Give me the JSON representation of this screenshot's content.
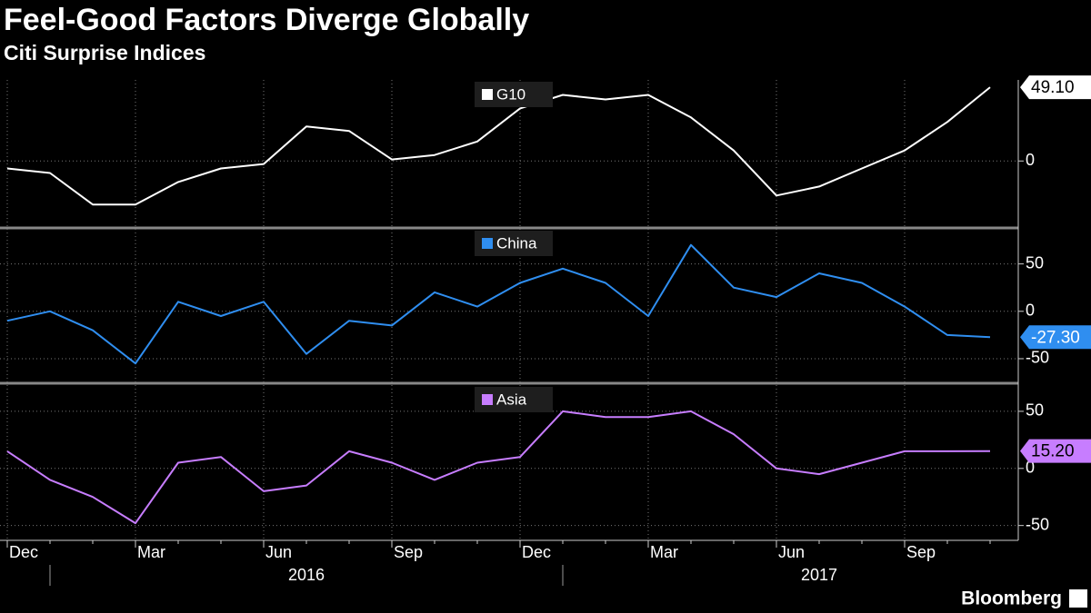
{
  "header": {
    "title": "Feel-Good Factors Diverge Globally",
    "subtitle": "Citi Surprise Indices"
  },
  "footer": "Bloomberg",
  "chart_data": [
    {
      "type": "line",
      "x": [
        "2015-12",
        "2016-01",
        "2016-02",
        "2016-03",
        "2016-04",
        "2016-05",
        "2016-06",
        "2016-07",
        "2016-08",
        "2016-09",
        "2016-10",
        "2016-11",
        "2016-12",
        "2017-01",
        "2017-02",
        "2017-03",
        "2017-04",
        "2017-05",
        "2017-06",
        "2017-07",
        "2017-08",
        "2017-09",
        "2017-10",
        "2017-11"
      ],
      "series": [
        {
          "name": "G10",
          "color": "#ffffff",
          "values": [
            -5,
            -8,
            -29,
            -29,
            -14,
            -5,
            -2,
            23,
            20,
            1,
            4,
            13,
            35,
            44,
            41,
            44,
            29,
            7,
            -23,
            -17,
            -5,
            7,
            26,
            49.1
          ],
          "value_labels": [
            null,
            null,
            null,
            null,
            null,
            null,
            null,
            null,
            null,
            null,
            null,
            null,
            null,
            null,
            null,
            null,
            null,
            null,
            null,
            null,
            null,
            null,
            null,
            "49.10"
          ]
        }
      ],
      "ylim": [
        -44,
        54
      ],
      "yticks": [
        0
      ],
      "grid": true
    },
    {
      "type": "line",
      "x": [
        "2015-12",
        "2016-01",
        "2016-02",
        "2016-03",
        "2016-04",
        "2016-05",
        "2016-06",
        "2016-07",
        "2016-08",
        "2016-09",
        "2016-10",
        "2016-11",
        "2016-12",
        "2017-01",
        "2017-02",
        "2017-03",
        "2017-04",
        "2017-05",
        "2017-06",
        "2017-07",
        "2017-08",
        "2017-09",
        "2017-10",
        "2017-11"
      ],
      "series": [
        {
          "name": "China",
          "color": "#2f8ef0",
          "values": [
            -10,
            0,
            -20,
            -55,
            10,
            -5,
            10,
            -45,
            -10,
            -15,
            20,
            5,
            30,
            45,
            30,
            -5,
            70,
            25,
            15,
            40,
            30,
            5,
            -25,
            -27.3
          ],
          "value_labels": [
            null,
            null,
            null,
            null,
            null,
            null,
            null,
            null,
            null,
            null,
            null,
            null,
            null,
            null,
            null,
            null,
            null,
            null,
            null,
            null,
            null,
            null,
            null,
            "-27.30"
          ]
        }
      ],
      "ylim": [
        -74,
        87
      ],
      "yticks": [
        -50,
        0,
        50
      ],
      "grid": true
    },
    {
      "type": "line",
      "x": [
        "2015-12",
        "2016-01",
        "2016-02",
        "2016-03",
        "2016-04",
        "2016-05",
        "2016-06",
        "2016-07",
        "2016-08",
        "2016-09",
        "2016-10",
        "2016-11",
        "2016-12",
        "2017-01",
        "2017-02",
        "2017-03",
        "2017-04",
        "2017-05",
        "2017-06",
        "2017-07",
        "2017-08",
        "2017-09",
        "2017-10",
        "2017-11"
      ],
      "series": [
        {
          "name": "Asia",
          "color": "#c77dff",
          "values": [
            15,
            -10,
            -25,
            -48,
            5,
            10,
            -20,
            -15,
            15,
            5,
            -10,
            5,
            10,
            50,
            45,
            45,
            50,
            30,
            0,
            -5,
            5,
            15,
            15,
            15.2
          ],
          "value_labels": [
            null,
            null,
            null,
            null,
            null,
            null,
            null,
            null,
            null,
            null,
            null,
            null,
            null,
            null,
            null,
            null,
            null,
            null,
            null,
            null,
            null,
            null,
            null,
            "15.20"
          ]
        }
      ],
      "ylim": [
        -63,
        73
      ],
      "yticks": [
        -50,
        0,
        50
      ],
      "grid": true,
      "xticks": [
        {
          "value": "2015-12",
          "label": "Dec"
        },
        {
          "value": "2016-03",
          "label": "Mar"
        },
        {
          "value": "2016-06",
          "label": "Jun"
        },
        {
          "value": "2016-09",
          "label": "Sep"
        },
        {
          "value": "2016-12",
          "label": "Dec"
        },
        {
          "value": "2017-03",
          "label": "Mar"
        },
        {
          "value": "2017-06",
          "label": "Jun"
        },
        {
          "value": "2017-09",
          "label": "Sep"
        }
      ],
      "year_labels": [
        "2016",
        "2017"
      ]
    }
  ]
}
